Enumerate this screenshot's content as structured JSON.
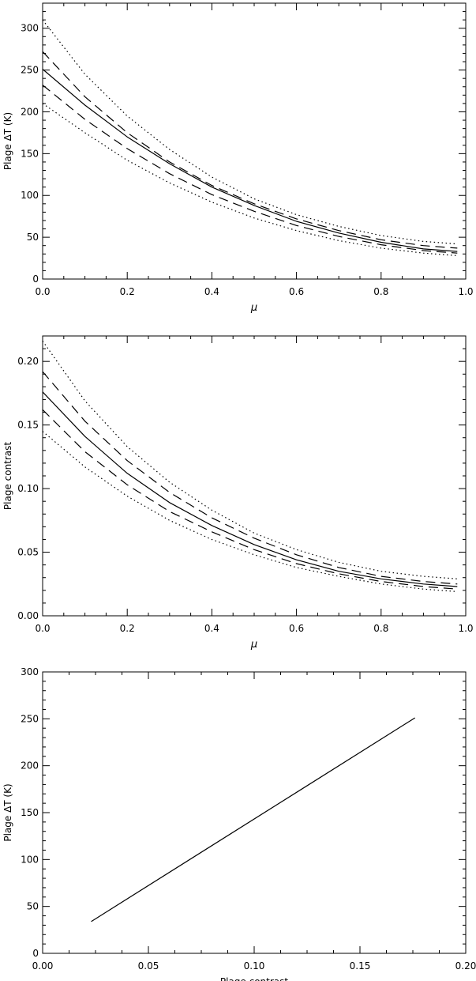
{
  "chart_data": [
    {
      "type": "line",
      "xlabel": "μ",
      "ylabel": "Plage ΔT (K)",
      "xlim": [
        0.0,
        1.0
      ],
      "ylim": [
        0,
        330
      ],
      "xticks": [
        0.0,
        0.2,
        0.4,
        0.6,
        0.8,
        1.0
      ],
      "xtick_labels": [
        "0.0",
        "0.2",
        "0.4",
        "0.6",
        "0.8",
        "1.0"
      ],
      "yticks": [
        0,
        50,
        100,
        150,
        200,
        250,
        300
      ],
      "ytick_labels": [
        "0",
        "50",
        "100",
        "150",
        "200",
        "250",
        "300"
      ],
      "grid": false,
      "legend": "none",
      "series": [
        {
          "style": "dotted",
          "x": [
            0.0,
            0.1,
            0.2,
            0.3,
            0.4,
            0.5,
            0.6,
            0.7,
            0.8,
            0.9,
            0.98
          ],
          "y": [
            310,
            245,
            195,
            155,
            122,
            96,
            77,
            63,
            52,
            45,
            42
          ]
        },
        {
          "style": "dashed",
          "x": [
            0.0,
            0.1,
            0.2,
            0.3,
            0.4,
            0.5,
            0.6,
            0.7,
            0.8,
            0.9,
            0.98
          ],
          "y": [
            272,
            218,
            175,
            140,
            112,
            90,
            72,
            58,
            47,
            40,
            37
          ]
        },
        {
          "style": "solid",
          "x": [
            0.0,
            0.1,
            0.2,
            0.3,
            0.4,
            0.5,
            0.6,
            0.7,
            0.8,
            0.9,
            0.98
          ],
          "y": [
            251,
            208,
            170,
            138,
            110,
            88,
            69,
            55,
            44,
            36,
            33
          ]
        },
        {
          "style": "dashed",
          "x": [
            0.0,
            0.1,
            0.2,
            0.3,
            0.4,
            0.5,
            0.6,
            0.7,
            0.8,
            0.9,
            0.98
          ],
          "y": [
            232,
            191,
            156,
            126,
            101,
            81,
            64,
            51,
            41,
            34,
            31
          ]
        },
        {
          "style": "dotted",
          "x": [
            0.0,
            0.1,
            0.2,
            0.3,
            0.4,
            0.5,
            0.6,
            0.7,
            0.8,
            0.9,
            0.98
          ],
          "y": [
            210,
            175,
            142,
            115,
            92,
            73,
            58,
            46,
            37,
            31,
            28
          ]
        }
      ]
    },
    {
      "type": "line",
      "xlabel": "μ",
      "ylabel": "Plage contrast",
      "xlim": [
        0.0,
        1.0
      ],
      "ylim": [
        0.0,
        0.22
      ],
      "xticks": [
        0.0,
        0.2,
        0.4,
        0.6,
        0.8,
        1.0
      ],
      "xtick_labels": [
        "0.0",
        "0.2",
        "0.4",
        "0.6",
        "0.8",
        "1.0"
      ],
      "yticks": [
        0.0,
        0.05,
        0.1,
        0.15,
        0.2
      ],
      "ytick_labels": [
        "0.00",
        "0.05",
        "0.10",
        "0.15",
        "0.20"
      ],
      "grid": false,
      "legend": "none",
      "series": [
        {
          "style": "dotted",
          "x": [
            0.0,
            0.1,
            0.2,
            0.3,
            0.4,
            0.5,
            0.6,
            0.7,
            0.8,
            0.9,
            0.98
          ],
          "y": [
            0.216,
            0.169,
            0.133,
            0.105,
            0.083,
            0.065,
            0.052,
            0.042,
            0.035,
            0.031,
            0.029
          ]
        },
        {
          "style": "dashed",
          "x": [
            0.0,
            0.1,
            0.2,
            0.3,
            0.4,
            0.5,
            0.6,
            0.7,
            0.8,
            0.9,
            0.98
          ],
          "y": [
            0.192,
            0.153,
            0.122,
            0.097,
            0.077,
            0.061,
            0.048,
            0.038,
            0.031,
            0.027,
            0.025
          ]
        },
        {
          "style": "solid",
          "x": [
            0.0,
            0.1,
            0.2,
            0.3,
            0.4,
            0.5,
            0.6,
            0.7,
            0.8,
            0.9,
            0.98
          ],
          "y": [
            0.176,
            0.141,
            0.112,
            0.089,
            0.071,
            0.056,
            0.044,
            0.035,
            0.029,
            0.025,
            0.023
          ]
        },
        {
          "style": "dashed",
          "x": [
            0.0,
            0.1,
            0.2,
            0.3,
            0.4,
            0.5,
            0.6,
            0.7,
            0.8,
            0.9,
            0.98
          ],
          "y": [
            0.162,
            0.129,
            0.103,
            0.082,
            0.066,
            0.052,
            0.041,
            0.033,
            0.027,
            0.023,
            0.021
          ]
        },
        {
          "style": "dotted",
          "x": [
            0.0,
            0.1,
            0.2,
            0.3,
            0.4,
            0.5,
            0.6,
            0.7,
            0.8,
            0.9,
            0.98
          ],
          "y": [
            0.145,
            0.117,
            0.094,
            0.075,
            0.06,
            0.048,
            0.038,
            0.031,
            0.025,
            0.021,
            0.019
          ]
        }
      ]
    },
    {
      "type": "line",
      "xlabel": "Plage contrast",
      "ylabel": "Plage ΔT (K)",
      "xlim": [
        0.0,
        0.2
      ],
      "ylim": [
        0,
        300
      ],
      "xticks": [
        0.0,
        0.05,
        0.1,
        0.15,
        0.2
      ],
      "xtick_labels": [
        "0.00",
        "0.05",
        "0.10",
        "0.15",
        "0.20"
      ],
      "yticks": [
        0,
        50,
        100,
        150,
        200,
        250,
        300
      ],
      "ytick_labels": [
        "0",
        "50",
        "100",
        "150",
        "200",
        "250",
        "300"
      ],
      "grid": false,
      "legend": "none",
      "series": [
        {
          "style": "solid",
          "x": [
            0.023,
            0.176
          ],
          "y": [
            34,
            251
          ]
        }
      ]
    }
  ]
}
